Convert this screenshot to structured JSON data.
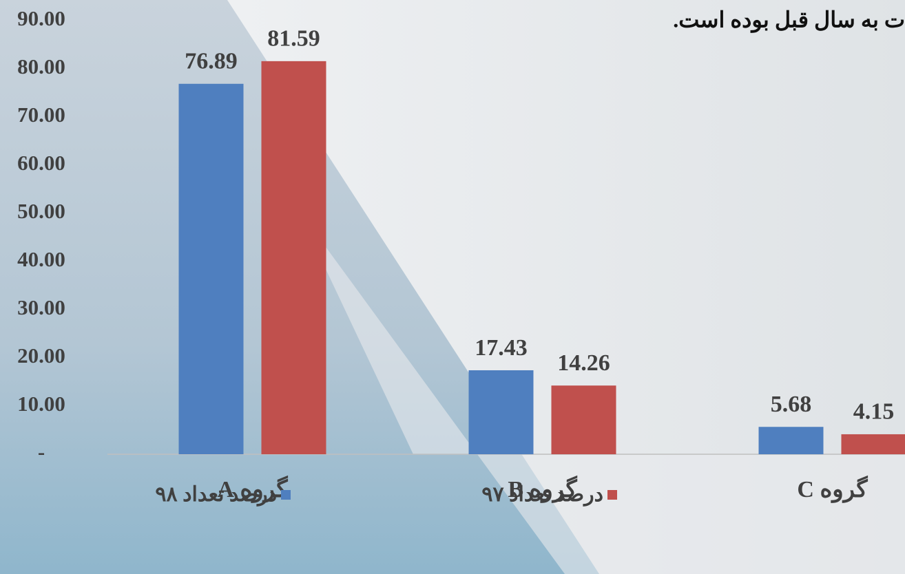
{
  "chart_data": {
    "type": "bar",
    "title": "ت به سال قبل بوده است.",
    "categories": [
      "گروه A",
      "گروه B",
      "گروه C"
    ],
    "series": [
      {
        "name": "درصد تعداد ۹۸",
        "color": "#4f7fbf",
        "values": [
          76.89,
          17.43,
          5.68
        ]
      },
      {
        "name": "درصد تعداد ۹۷",
        "color": "#c0504d",
        "values": [
          81.59,
          14.26,
          4.15
        ]
      }
    ],
    "ylim": [
      0,
      90
    ],
    "yticks": [
      {
        "value": 0,
        "label": "-"
      },
      {
        "value": 10,
        "label": "10.00"
      },
      {
        "value": 20,
        "label": "20.00"
      },
      {
        "value": 30,
        "label": "30.00"
      },
      {
        "value": 40,
        "label": "40.00"
      },
      {
        "value": 50,
        "label": "50.00"
      },
      {
        "value": 60,
        "label": "60.00"
      },
      {
        "value": 70,
        "label": "70.00"
      },
      {
        "value": 80,
        "label": "80.00"
      },
      {
        "value": 90,
        "label": "90.00"
      }
    ]
  }
}
